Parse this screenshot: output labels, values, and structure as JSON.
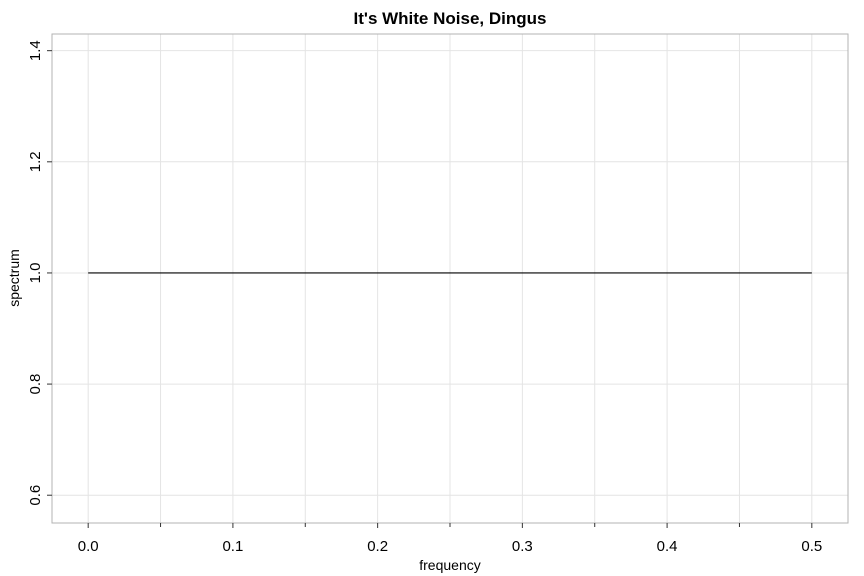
{
  "chart_data": {
    "type": "line",
    "title": "It's White Noise, Dingus",
    "xlabel": "frequency",
    "ylabel": "spectrum",
    "xlim": [
      -0.025,
      0.525
    ],
    "ylim": [
      0.55,
      1.43
    ],
    "x_ticks": [
      0.0,
      0.1,
      0.2,
      0.3,
      0.4,
      0.5
    ],
    "x_tick_labels": [
      "0.0",
      "0.1",
      "0.2",
      "0.3",
      "0.4",
      "0.5"
    ],
    "x_minor_ticks": [
      0.05,
      0.15,
      0.25,
      0.35,
      0.45
    ],
    "y_ticks": [
      0.6,
      0.8,
      1.0,
      1.2,
      1.4
    ],
    "y_tick_labels": [
      "0.6",
      "0.8",
      "1.0",
      "1.2",
      "1.4"
    ],
    "x_grid": [
      0.0,
      0.05,
      0.1,
      0.15,
      0.2,
      0.25,
      0.3,
      0.35,
      0.4,
      0.45,
      0.5
    ],
    "y_grid": [
      0.6,
      0.8,
      1.0,
      1.2,
      1.4
    ],
    "grid": true,
    "series": [
      {
        "x": [
          0.0,
          0.5
        ],
        "y": [
          1.0,
          1.0
        ],
        "color": "#000000"
      }
    ]
  }
}
